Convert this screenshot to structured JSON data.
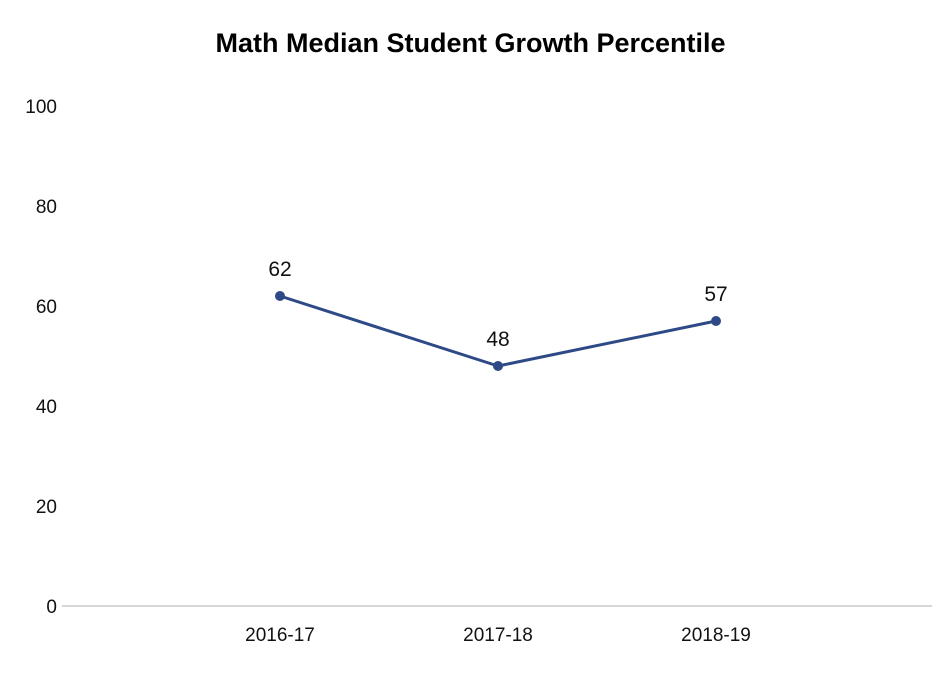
{
  "chart_data": {
    "type": "line",
    "title": "Math Median Student Growth Percentile",
    "categories": [
      "2016-17",
      "2017-18",
      "2018-19"
    ],
    "series": [
      {
        "values": [
          62,
          48,
          57
        ]
      }
    ],
    "data_labels": [
      "62",
      "48",
      "57"
    ],
    "y_ticks": [
      "0",
      "20",
      "40",
      "60",
      "80",
      "100"
    ],
    "ylim": [
      0,
      100
    ],
    "xlabel": "",
    "ylabel": "",
    "grid": false,
    "legend": "none",
    "colors": {
      "line": "#2d4a87",
      "axis": "#d6d6d6"
    }
  }
}
